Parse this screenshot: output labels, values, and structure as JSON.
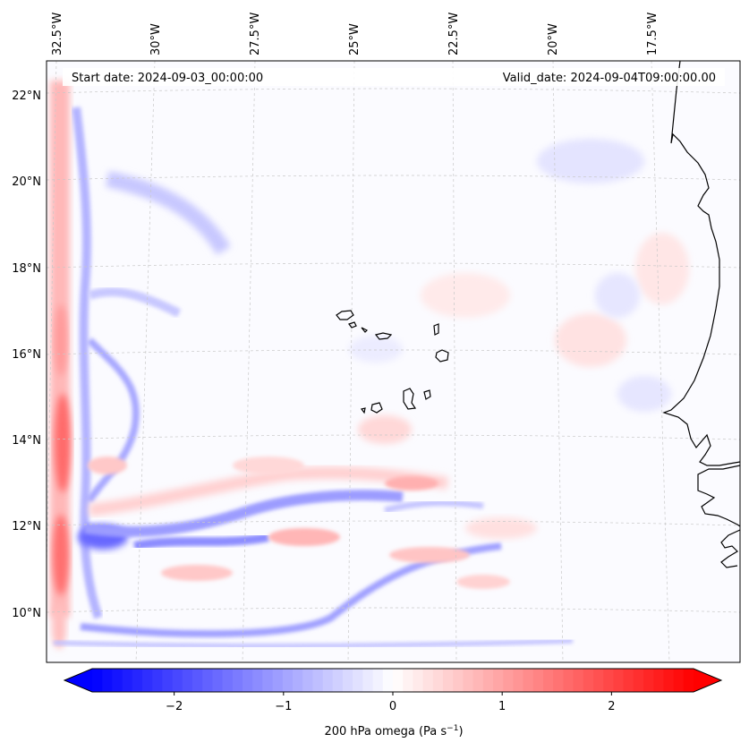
{
  "header": {
    "start_label": "Start date: 2024-09-03_00:00:00",
    "valid_label": "Valid_date: 2024-09-04T09:00:00.00"
  },
  "map": {
    "lon_labels": [
      "32.5°W",
      "30°W",
      "27.5°W",
      "25°W",
      "22.5°W",
      "20°W",
      "17.5°W"
    ],
    "lat_labels": [
      "22°N",
      "20°N",
      "18°N",
      "16°N",
      "14°N",
      "12°N",
      "10°N"
    ],
    "gridlines": true
  },
  "colorbar": {
    "ticks": [
      "−2",
      "−1",
      "0",
      "1",
      "2"
    ],
    "tick_values": [
      -2,
      -1,
      0,
      1,
      2
    ],
    "range": [
      -2.75,
      2.75
    ],
    "extend": "both",
    "label_main": "200 hPa omega (Pa s",
    "label_sup": "−1",
    "label_tail": ")",
    "colors": {
      "min": "#0000ff",
      "mid": "#ffffff",
      "max": "#ff0000"
    }
  }
}
